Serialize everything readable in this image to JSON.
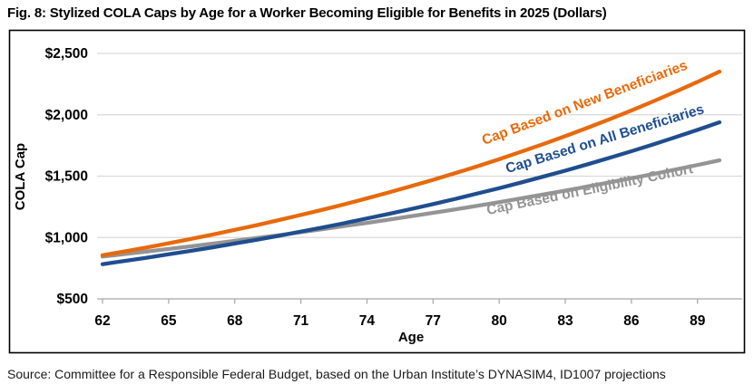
{
  "figure": {
    "title": "Fig. 8: Stylized COLA Caps by Age for a Worker Becoming Eligible for Benefits in 2025 (Dollars)",
    "source": "Source: Committee for a Responsible Federal Budget, based on the Urban Institute’s DYNASIM4, ID1007 projections"
  },
  "chart_data": {
    "type": "line",
    "title": "Stylized COLA Caps by Age for a Worker Becoming Eligible for Benefits in 2025 (Dollars)",
    "xlabel": "Age",
    "ylabel": "COLA Cap",
    "xlim": [
      62,
      90
    ],
    "ylim": [
      500,
      2500
    ],
    "grid": "horizontal-gridlines-only",
    "legend": "rotated-inline-labels",
    "x_ticks": [
      62,
      65,
      68,
      71,
      74,
      77,
      80,
      83,
      86,
      89
    ],
    "y_ticks": [
      {
        "value": 500,
        "label": "$500"
      },
      {
        "value": 1000,
        "label": "$1,000"
      },
      {
        "value": 1500,
        "label": "$1,500"
      },
      {
        "value": 2000,
        "label": "$2,000"
      },
      {
        "value": 2500,
        "label": "$2,500"
      }
    ],
    "x": [
      62,
      63,
      64,
      65,
      66,
      67,
      68,
      69,
      70,
      71,
      72,
      73,
      74,
      75,
      76,
      77,
      78,
      79,
      80,
      81,
      82,
      83,
      84,
      85,
      86,
      87,
      88,
      89,
      90
    ],
    "series": [
      {
        "name": "Cap Based on New Beneficiaries",
        "color": "#E8690B",
        "values": [
          855,
          887,
          919,
          953,
          988,
          1024,
          1062,
          1101,
          1142,
          1184,
          1227,
          1272,
          1319,
          1368,
          1418,
          1470,
          1524,
          1580,
          1638,
          1699,
          1761,
          1826,
          1893,
          1963,
          2035,
          2110,
          2188,
          2268,
          2352
        ]
      },
      {
        "name": "Cap Based on All Beneficiaries",
        "color": "#1F4E8F",
        "values": [
          783,
          809,
          835,
          863,
          891,
          920,
          951,
          982,
          1014,
          1048,
          1082,
          1118,
          1155,
          1193,
          1232,
          1272,
          1314,
          1358,
          1402,
          1448,
          1496,
          1545,
          1596,
          1649,
          1703,
          1759,
          1817,
          1877,
          1939
        ]
      },
      {
        "name": "Cap Based on Eligibility Cohort",
        "color": "#949494",
        "values": [
          845,
          865,
          886,
          907,
          928,
          950,
          973,
          996,
          1019,
          1043,
          1068,
          1094,
          1119,
          1146,
          1173,
          1201,
          1229,
          1259,
          1288,
          1319,
          1350,
          1382,
          1415,
          1449,
          1483,
          1518,
          1554,
          1591,
          1629
        ]
      }
    ],
    "colors": {
      "grid": "#D9D9D9",
      "axis": "#A6A6A6",
      "text": "#000000",
      "border": "#000000"
    }
  }
}
